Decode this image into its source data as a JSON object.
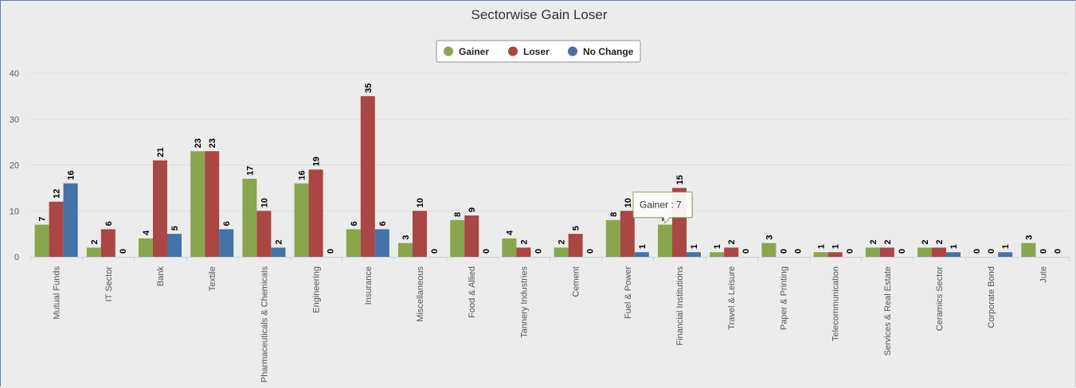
{
  "chart_data": {
    "type": "bar",
    "title": "Sectorwise Gain Loser",
    "categories": [
      "Mutual Funds",
      "IT Sector",
      "Bank",
      "Textile",
      "Pharmaceuticals & Chemicals",
      "Engineering",
      "Insurance",
      "Miscellaneous",
      "Food & Allied",
      "Tannery Industries",
      "Cement",
      "Fuel & Power",
      "Financial Institutions",
      "Travel & Leisure",
      "Paper & Printing",
      "Telecommunication",
      "Services & Real Estate",
      "Ceramics Sector",
      "Corporate Bond",
      "Jute"
    ],
    "series": [
      {
        "name": "Gainer",
        "color": "#89a54e",
        "values": [
          7,
          2,
          4,
          23,
          17,
          16,
          6,
          3,
          8,
          4,
          2,
          8,
          7,
          1,
          3,
          1,
          2,
          2,
          0,
          3
        ]
      },
      {
        "name": "Loser",
        "color": "#aa4643",
        "values": [
          12,
          6,
          21,
          23,
          10,
          19,
          35,
          10,
          9,
          2,
          5,
          10,
          15,
          2,
          0,
          1,
          2,
          2,
          0,
          0
        ]
      },
      {
        "name": "No Change",
        "color": "#4572a7",
        "values": [
          16,
          0,
          5,
          6,
          2,
          0,
          6,
          0,
          0,
          0,
          0,
          1,
          1,
          0,
          0,
          0,
          0,
          1,
          1,
          0
        ]
      }
    ],
    "ylim": [
      0,
      40
    ],
    "yticks": [
      0,
      10,
      20,
      30,
      40
    ],
    "grid": true,
    "legend_position": "top-center",
    "data_labels": true,
    "tooltip": {
      "text": "Gainer : 7",
      "category": "Financial Institutions",
      "series": "Gainer"
    }
  }
}
